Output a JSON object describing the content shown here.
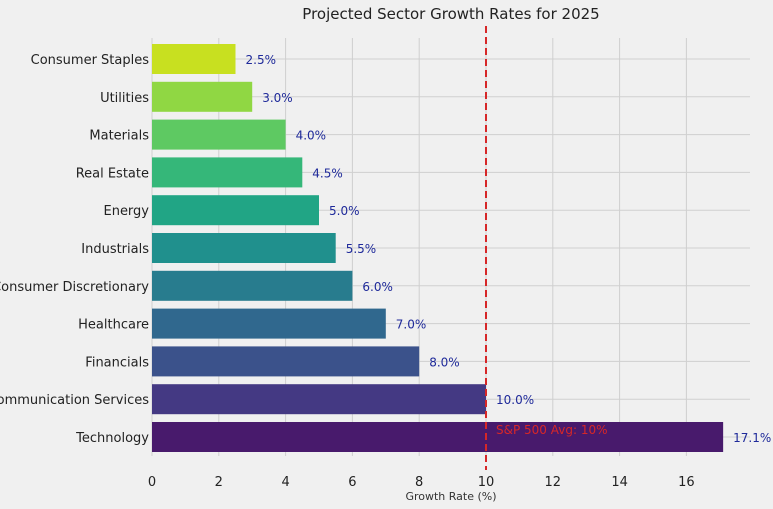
{
  "chart_data": {
    "type": "bar",
    "orientation": "horizontal",
    "title": "Projected Sector Growth Rates for 2025",
    "xlabel": "Growth Rate (%)",
    "ylabel": "",
    "xlim": [
      0,
      17.8
    ],
    "xticks": [
      0,
      2,
      4,
      6,
      8,
      10,
      12,
      14,
      16
    ],
    "grid": true,
    "categories": [
      "Consumer Staples",
      "Utilities",
      "Materials",
      "Real Estate",
      "Energy",
      "Industrials",
      "Consumer Discretionary",
      "Healthcare",
      "Financials",
      "Communication Services",
      "Technology"
    ],
    "values": [
      2.5,
      3.0,
      4.0,
      4.5,
      5.0,
      5.5,
      6.0,
      7.0,
      8.0,
      10.0,
      17.1
    ],
    "value_labels": [
      "2.5%",
      "3.0%",
      "4.0%",
      "4.5%",
      "5.0%",
      "5.5%",
      "6.0%",
      "7.0%",
      "8.0%",
      "10.0%",
      "17.1%"
    ],
    "colors": [
      "#c8e020",
      "#90d743",
      "#5ec962",
      "#35b779",
      "#21a585",
      "#20908d",
      "#287c8e",
      "#30688e",
      "#3b528b",
      "#443983",
      "#481a6c"
    ],
    "reference_line": {
      "value": 10,
      "label": "S&P 500 Avg: 10%",
      "color": "#d62728",
      "style": "dashed"
    }
  }
}
